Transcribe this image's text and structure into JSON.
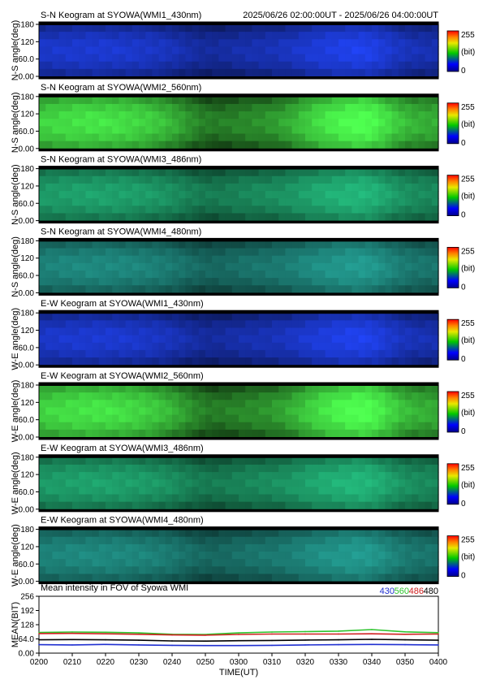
{
  "header": {
    "time_range": "2025/06/26 02:00:00UT - 2025/06/26 04:00:00UT"
  },
  "keogram_ylabels": {
    "ns": "N-S angle(deg)",
    "we": "W-E angle(deg)"
  },
  "colorbar": {
    "max": "255",
    "unit": "(bit)",
    "min": "0"
  },
  "keogram_yticks": [
    "0.00",
    "60.0",
    "120",
    "180"
  ],
  "panels": [
    {
      "title": "S-N Keogram at SYOWA(WMI1_430nm)",
      "orientation": "ns",
      "wavelength": "430",
      "base_color": "#1c3ad2"
    },
    {
      "title": "S-N Keogram at SYOWA(WMI2_560nm)",
      "orientation": "ns",
      "wavelength": "560",
      "base_color": "#3fce40"
    },
    {
      "title": "S-N Keogram at SYOWA(WMI3_486nm)",
      "orientation": "ns",
      "wavelength": "486",
      "base_color": "#1fa36d"
    },
    {
      "title": "S-N Keogram at SYOWA(WMI4_480nm)",
      "orientation": "ns",
      "wavelength": "480",
      "base_color": "#1f8a80"
    },
    {
      "title": "E-W Keogram at SYOWA(WMI1_430nm)",
      "orientation": "we",
      "wavelength": "430",
      "base_color": "#1c3ad2"
    },
    {
      "title": "E-W Keogram at SYOWA(WMI2_560nm)",
      "orientation": "we",
      "wavelength": "560",
      "base_color": "#3fce40"
    },
    {
      "title": "E-W Keogram at SYOWA(WMI3_486nm)",
      "orientation": "we",
      "wavelength": "486",
      "base_color": "#1fa36d"
    },
    {
      "title": "E-W Keogram at SYOWA(WMI4_480nm)",
      "orientation": "we",
      "wavelength": "480",
      "base_color": "#1f8a80"
    }
  ],
  "mean_panel": {
    "title": "Mean intensity in FOV of Syowa WMI",
    "ylabel": "MEAN(BIT)",
    "xlabel": "TIME(UT)",
    "legend": [
      {
        "label": "430",
        "color": "#1f2fd0"
      },
      {
        "label": "560",
        "color": "#2ec42e"
      },
      {
        "label": "486",
        "color": "#d02020"
      },
      {
        "label": "480",
        "color": "#000000"
      }
    ]
  },
  "chart_data": {
    "type": "line",
    "title": "Mean intensity in FOV of Syowa WMI",
    "xlabel": "TIME(UT)",
    "ylabel": "MEAN(BIT)",
    "x_ticks": [
      "0200",
      "0210",
      "0220",
      "0230",
      "0240",
      "0250",
      "0300",
      "0310",
      "0320",
      "0330",
      "0340",
      "0350",
      "0400"
    ],
    "y_ticks": [
      "0.00",
      "64.0",
      "128",
      "192",
      "256"
    ],
    "ylim": [
      0,
      256
    ],
    "x_minutes": [
      0,
      10,
      20,
      30,
      40,
      50,
      60,
      70,
      80,
      90,
      100,
      110,
      120
    ],
    "series": [
      {
        "name": "430",
        "color": "#1f2fd0",
        "values": [
          38,
          37,
          39,
          37,
          35,
          34,
          34,
          35,
          37,
          38,
          39,
          38,
          37
        ]
      },
      {
        "name": "560",
        "color": "#2ec42e",
        "values": [
          93,
          95,
          94,
          91,
          85,
          84,
          91,
          95,
          97,
          99,
          106,
          96,
          92
        ]
      },
      {
        "name": "486",
        "color": "#d02020",
        "values": [
          88,
          89,
          87,
          85,
          82,
          81,
          84,
          86,
          86,
          86,
          87,
          85,
          86
        ]
      },
      {
        "name": "480",
        "color": "#000000",
        "values": [
          60,
          61,
          60,
          58,
          55,
          54,
          56,
          57,
          59,
          60,
          62,
          60,
          58
        ]
      }
    ]
  }
}
